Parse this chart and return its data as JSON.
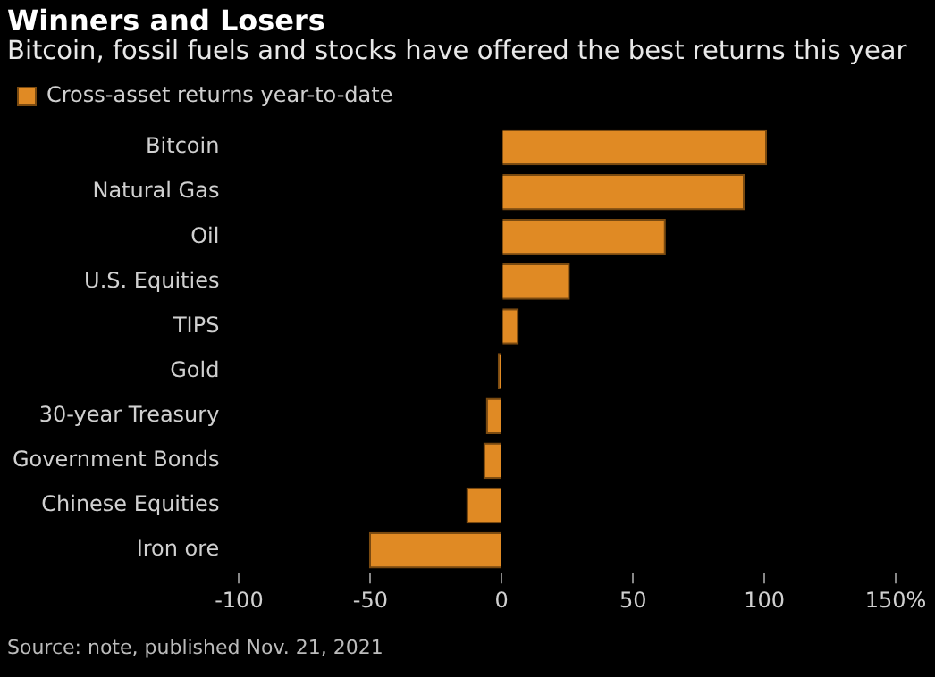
{
  "chart_data": {
    "type": "bar",
    "orientation": "horizontal",
    "title": "Winners and Losers",
    "subtitle": "Bitcoin, fossil fuels and stocks have offered the best returns this year",
    "categories": [
      "Bitcoin",
      "Natural Gas",
      "Oil",
      "U.S. Equities",
      "TIPS",
      "Gold",
      "30-year Treasury",
      "Government Bonds",
      "Chinese Equities",
      "Iron ore"
    ],
    "series": [
      {
        "name": "Cross-asset returns year-to-date",
        "color": "#e08a24",
        "values": [
          101,
          92.5,
          62.5,
          26,
          6.5,
          -1.5,
          -6,
          -7,
          -13.5,
          -50.5
        ]
      }
    ],
    "xlim": [
      -100,
      150
    ],
    "xticks": [
      -100,
      -50,
      0,
      50,
      100,
      {
        "value": 150,
        "label": "150%"
      }
    ],
    "grid": false,
    "legend": "top left",
    "annotations": [
      "Source: note, published Nov. 21, 2021"
    ]
  }
}
